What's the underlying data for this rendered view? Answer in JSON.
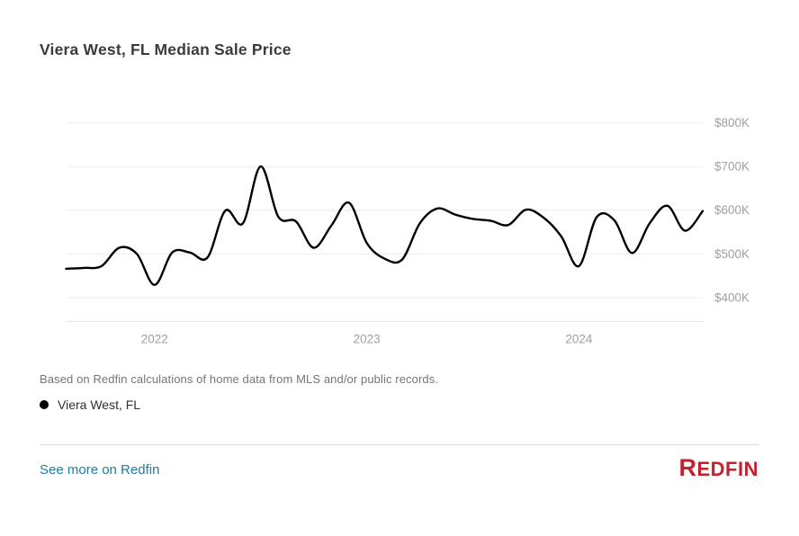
{
  "page": {
    "title": "Viera West, FL Median Sale Price",
    "footnote": "Based on Redfin calculations of home data from MLS and/or public records.",
    "see_more_link": "See more on Redfin",
    "logo": {
      "first_letter": "R",
      "rest": "EDFIN"
    }
  },
  "legend": {
    "label": "Viera West, FL",
    "marker_color": "#000000"
  },
  "colors": {
    "line": "#000000",
    "grid": "#ececec",
    "axis_baseline": "#e7e7e7",
    "axis_text": "#9f9f9f",
    "title_text": "#3b3b3b",
    "footnote_text": "#757575",
    "link": "#207ca0",
    "logo_red": "#c4212f",
    "divider": "#dcdcdc",
    "background": "#ffffff"
  },
  "chart_data": {
    "type": "line",
    "title": "Viera West, FL Median Sale Price",
    "x": [
      "2021-08",
      "2021-09",
      "2021-10",
      "2021-11",
      "2021-12",
      "2022-01",
      "2022-02",
      "2022-03",
      "2022-04",
      "2022-05",
      "2022-06",
      "2022-07",
      "2022-08",
      "2022-09",
      "2022-10",
      "2022-11",
      "2022-12",
      "2023-01",
      "2023-02",
      "2023-03",
      "2023-04",
      "2023-05",
      "2023-06",
      "2023-07",
      "2023-08",
      "2023-09",
      "2023-10",
      "2023-11",
      "2023-12",
      "2024-01",
      "2024-02",
      "2024-03",
      "2024-04",
      "2024-05",
      "2024-06",
      "2024-07",
      "2024-08"
    ],
    "series": [
      {
        "name": "Viera West, FL",
        "color": "#000000",
        "values_k_usd": [
          466,
          468,
          472,
          514,
          500,
          429,
          503,
          503,
          492,
          599,
          570,
          700,
          585,
          574,
          514,
          565,
          617,
          525,
          489,
          487,
          570,
          604,
          590,
          580,
          576,
          566,
          601,
          583,
          540,
          472,
          584,
          577,
          502,
          570,
          610,
          553,
          598
        ]
      }
    ],
    "y_ticks": [
      {
        "label": "$800K",
        "value": 800
      },
      {
        "label": "$700K",
        "value": 700
      },
      {
        "label": "$600K",
        "value": 600
      },
      {
        "label": "$500K",
        "value": 500
      },
      {
        "label": "$400K",
        "value": 400
      }
    ],
    "x_ticks": [
      {
        "label": "2022",
        "month_index": 5
      },
      {
        "label": "2023",
        "month_index": 17
      },
      {
        "label": "2024",
        "month_index": 29
      }
    ],
    "ylim_k_usd": [
      400,
      800
    ],
    "grid": "horizontal",
    "legend_position": "bottom-left"
  }
}
